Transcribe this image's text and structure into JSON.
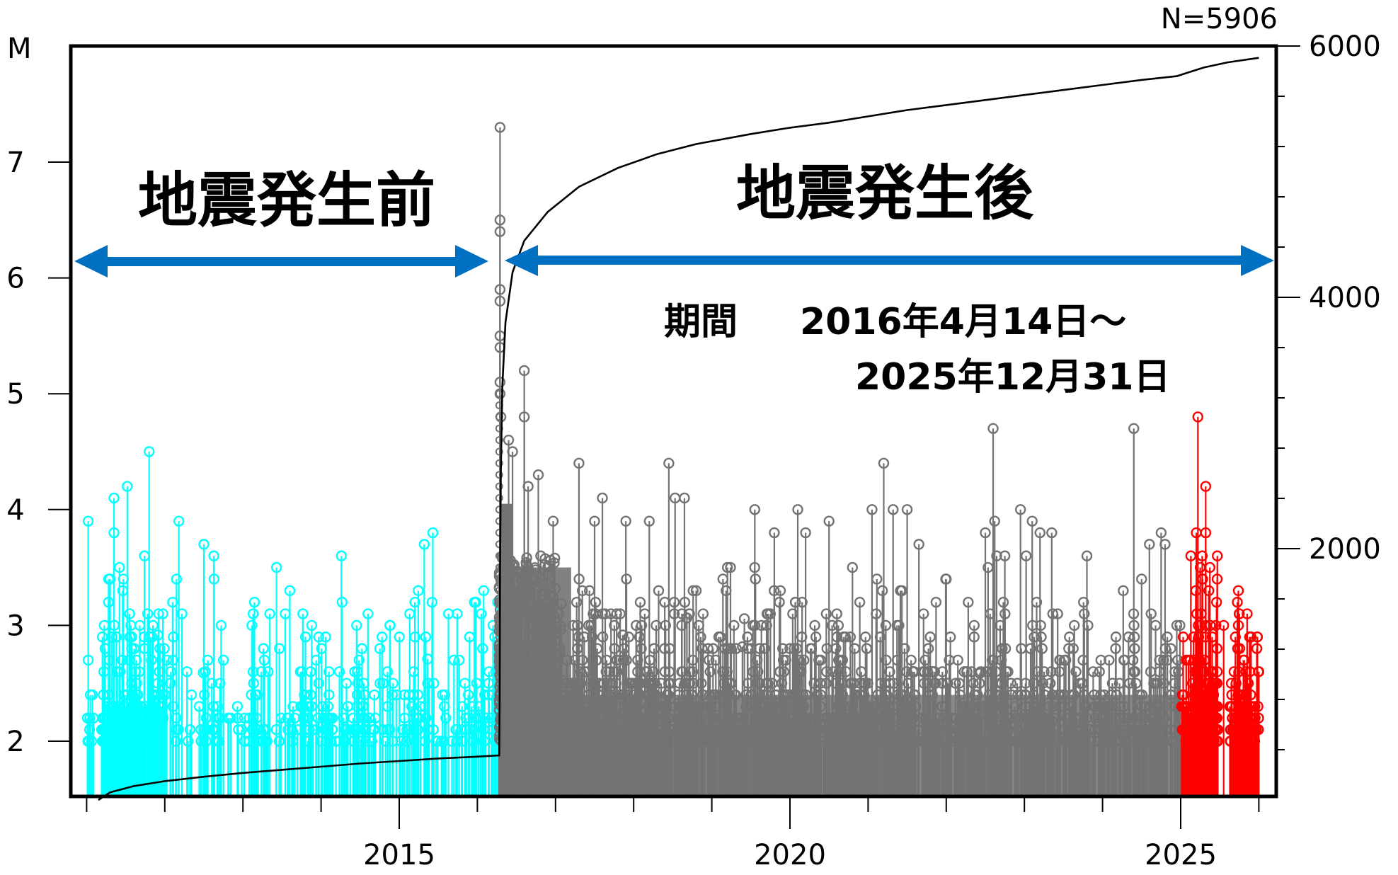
{
  "chart_data": {
    "type": "scatter",
    "subtype": "magnitude-time stem plot with cumulative count",
    "count_label": "N=5906",
    "left_axis": {
      "label": "M",
      "ticks": [
        2,
        3,
        4,
        5,
        6,
        7
      ],
      "range": [
        1.5,
        7.9
      ]
    },
    "right_axis": {
      "label": "",
      "ticks": [
        2000,
        4000,
        6000
      ],
      "minor_step": 400,
      "range": [
        0,
        6000
      ]
    },
    "x_axis": {
      "labels": [
        "2015",
        "2020",
        "2025"
      ],
      "major_ticks": [
        2015,
        2020,
        2025
      ],
      "minor_ticks": [
        2011,
        2012,
        2013,
        2014,
        2016,
        2017,
        2018,
        2019,
        2021,
        2022,
        2023,
        2024,
        2026
      ],
      "range": [
        2010.5,
        2026.5
      ]
    },
    "annotations": {
      "before_label": "地震発生前",
      "after_label": "地震発生後",
      "period_label": "期間",
      "period_start": "2016年4月14日～",
      "period_end": "2025年12月31日"
    },
    "series": [
      {
        "name": "before-mainshock",
        "color": "#00FFFF",
        "x_range": [
          2011.0,
          2016.28
        ],
        "peaks": [
          {
            "x": 2011.02,
            "m": 3.9
          },
          {
            "x": 2011.02,
            "m": 2.7
          },
          {
            "x": 2011.3,
            "m": 3.4
          },
          {
            "x": 2011.28,
            "m": 3.2
          },
          {
            "x": 2011.35,
            "m": 4.1
          },
          {
            "x": 2011.35,
            "m": 3.8
          },
          {
            "x": 2011.42,
            "m": 3.5
          },
          {
            "x": 2011.47,
            "m": 3.4
          },
          {
            "x": 2011.52,
            "m": 4.2
          },
          {
            "x": 2011.55,
            "m": 3.1
          },
          {
            "x": 2011.74,
            "m": 3.6
          },
          {
            "x": 2011.8,
            "m": 4.5
          },
          {
            "x": 2011.83,
            "m": 2.7
          },
          {
            "x": 2011.92,
            "m": 3.1
          },
          {
            "x": 2012.1,
            "m": 3.2
          },
          {
            "x": 2012.15,
            "m": 3.4
          },
          {
            "x": 2012.18,
            "m": 3.9
          },
          {
            "x": 2012.22,
            "m": 3.1
          },
          {
            "x": 2012.5,
            "m": 3.7
          },
          {
            "x": 2012.63,
            "m": 3.4
          },
          {
            "x": 2012.75,
            "m": 2.7
          },
          {
            "x": 2013.13,
            "m": 2.6
          },
          {
            "x": 2013.43,
            "m": 3.5
          },
          {
            "x": 2013.6,
            "m": 3.3
          },
          {
            "x": 2013.8,
            "m": 2.9
          },
          {
            "x": 2013.88,
            "m": 3.0
          },
          {
            "x": 2014.09,
            "m": 2.3
          },
          {
            "x": 2014.26,
            "m": 3.6
          },
          {
            "x": 2014.43,
            "m": 2.6
          },
          {
            "x": 2014.6,
            "m": 3.1
          },
          {
            "x": 2014.78,
            "m": 2.9
          },
          {
            "x": 2014.88,
            "m": 3.0
          },
          {
            "x": 2014.85,
            "m": 2.6
          },
          {
            "x": 2015.2,
            "m": 3.2
          },
          {
            "x": 2015.32,
            "m": 3.7
          },
          {
            "x": 2015.43,
            "m": 3.8
          },
          {
            "x": 2015.42,
            "m": 3.2
          },
          {
            "x": 2015.63,
            "m": 3.1
          },
          {
            "x": 2015.7,
            "m": 2.7
          },
          {
            "x": 2015.9,
            "m": 2.9
          },
          {
            "x": 2015.98,
            "m": 3.2
          },
          {
            "x": 2016.05,
            "m": 3.1
          },
          {
            "x": 2016.08,
            "m": 3.3
          },
          {
            "x": 2016.15,
            "m": 2.6
          },
          {
            "x": 2016.2,
            "m": 3.0
          }
        ]
      },
      {
        "name": "after-mainshock",
        "color": "#737373",
        "x_range": [
          2016.28,
          2025.0
        ],
        "peaks": [
          {
            "x": 2016.29,
            "m": 7.3
          },
          {
            "x": 2016.29,
            "m": 6.5
          },
          {
            "x": 2016.29,
            "m": 6.4
          },
          {
            "x": 2016.29,
            "m": 5.9
          },
          {
            "x": 2016.29,
            "m": 5.8
          },
          {
            "x": 2016.29,
            "m": 5.5
          },
          {
            "x": 2016.29,
            "m": 5.4
          },
          {
            "x": 2016.29,
            "m": 5.1
          },
          {
            "x": 2016.29,
            "m": 5.0
          },
          {
            "x": 2016.3,
            "m": 4.8
          },
          {
            "x": 2016.4,
            "m": 4.6
          },
          {
            "x": 2016.45,
            "m": 4.5
          },
          {
            "x": 2016.6,
            "m": 5.2
          },
          {
            "x": 2016.6,
            "m": 4.8
          },
          {
            "x": 2016.65,
            "m": 4.2
          },
          {
            "x": 2016.78,
            "m": 4.3
          },
          {
            "x": 2016.97,
            "m": 3.9
          },
          {
            "x": 2017.3,
            "m": 4.4
          },
          {
            "x": 2017.5,
            "m": 3.9
          },
          {
            "x": 2017.6,
            "m": 4.1
          },
          {
            "x": 2017.9,
            "m": 3.9
          },
          {
            "x": 2018.2,
            "m": 3.9
          },
          {
            "x": 2018.45,
            "m": 4.4
          },
          {
            "x": 2018.53,
            "m": 4.1
          },
          {
            "x": 2018.65,
            "m": 4.1
          },
          {
            "x": 2018.8,
            "m": 3.3
          },
          {
            "x": 2019.2,
            "m": 3.5
          },
          {
            "x": 2019.55,
            "m": 4.0
          },
          {
            "x": 2019.8,
            "m": 3.8
          },
          {
            "x": 2020.1,
            "m": 4.0
          },
          {
            "x": 2020.2,
            "m": 3.8
          },
          {
            "x": 2020.5,
            "m": 3.9
          },
          {
            "x": 2020.8,
            "m": 3.5
          },
          {
            "x": 2021.05,
            "m": 4.0
          },
          {
            "x": 2021.2,
            "m": 4.4
          },
          {
            "x": 2021.32,
            "m": 4.0
          },
          {
            "x": 2021.5,
            "m": 4.0
          },
          {
            "x": 2021.65,
            "m": 3.7
          },
          {
            "x": 2022.0,
            "m": 3.4
          },
          {
            "x": 2022.5,
            "m": 3.8
          },
          {
            "x": 2022.6,
            "m": 4.7
          },
          {
            "x": 2022.62,
            "m": 3.9
          },
          {
            "x": 2022.75,
            "m": 3.6
          },
          {
            "x": 2022.95,
            "m": 4.0
          },
          {
            "x": 2023.1,
            "m": 3.9
          },
          {
            "x": 2023.2,
            "m": 3.8
          },
          {
            "x": 2023.35,
            "m": 3.8
          },
          {
            "x": 2023.8,
            "m": 3.6
          },
          {
            "x": 2024.4,
            "m": 4.7
          },
          {
            "x": 2024.5,
            "m": 3.4
          },
          {
            "x": 2024.6,
            "m": 3.7
          },
          {
            "x": 2024.75,
            "m": 3.8
          },
          {
            "x": 2024.8,
            "m": 3.7
          },
          {
            "x": 2024.95,
            "m": 3.0
          }
        ]
      },
      {
        "name": "recent-2025",
        "color": "#FF0000",
        "x_range": [
          2025.0,
          2026.0
        ],
        "peaks": [
          {
            "x": 2025.13,
            "m": 3.6
          },
          {
            "x": 2025.2,
            "m": 3.8
          },
          {
            "x": 2025.22,
            "m": 4.8
          },
          {
            "x": 2025.25,
            "m": 3.5
          },
          {
            "x": 2025.32,
            "m": 4.2
          },
          {
            "x": 2025.32,
            "m": 3.8
          },
          {
            "x": 2025.36,
            "m": 3.3
          },
          {
            "x": 2025.45,
            "m": 3.0
          },
          {
            "x": 2025.55,
            "m": 3.0
          },
          {
            "x": 2025.7,
            "m": 2.9
          },
          {
            "x": 2025.75,
            "m": 3.1
          },
          {
            "x": 2025.85,
            "m": 3.1
          },
          {
            "x": 2025.9,
            "m": 2.9
          },
          {
            "x": 2025.98,
            "m": 2.9
          },
          {
            "x": 2026.0,
            "m": 2.6
          }
        ]
      }
    ],
    "cumulative_curve": {
      "color": "#000000",
      "points": [
        [
          2011.15,
          0
        ],
        [
          2011.3,
          60
        ],
        [
          2011.6,
          110
        ],
        [
          2012.0,
          150
        ],
        [
          2012.5,
          185
        ],
        [
          2013.0,
          215
        ],
        [
          2013.5,
          240
        ],
        [
          2014.0,
          265
        ],
        [
          2014.5,
          290
        ],
        [
          2015.0,
          310
        ],
        [
          2015.5,
          330
        ],
        [
          2016.0,
          345
        ],
        [
          2016.28,
          355
        ],
        [
          2016.285,
          800
        ],
        [
          2016.29,
          1800
        ],
        [
          2016.3,
          2600
        ],
        [
          2016.32,
          3300
        ],
        [
          2016.36,
          3800
        ],
        [
          2016.45,
          4200
        ],
        [
          2016.6,
          4450
        ],
        [
          2016.9,
          4680
        ],
        [
          2017.3,
          4880
        ],
        [
          2017.8,
          5030
        ],
        [
          2018.3,
          5140
        ],
        [
          2018.8,
          5220
        ],
        [
          2019.5,
          5300
        ],
        [
          2020.0,
          5350
        ],
        [
          2020.5,
          5390
        ],
        [
          2021.0,
          5440
        ],
        [
          2021.5,
          5490
        ],
        [
          2022.0,
          5530
        ],
        [
          2022.5,
          5570
        ],
        [
          2023.0,
          5610
        ],
        [
          2023.5,
          5650
        ],
        [
          2024.0,
          5690
        ],
        [
          2024.5,
          5730
        ],
        [
          2024.95,
          5760
        ],
        [
          2025.05,
          5780
        ],
        [
          2025.3,
          5830
        ],
        [
          2025.6,
          5870
        ],
        [
          2026.0,
          5906
        ]
      ]
    }
  }
}
